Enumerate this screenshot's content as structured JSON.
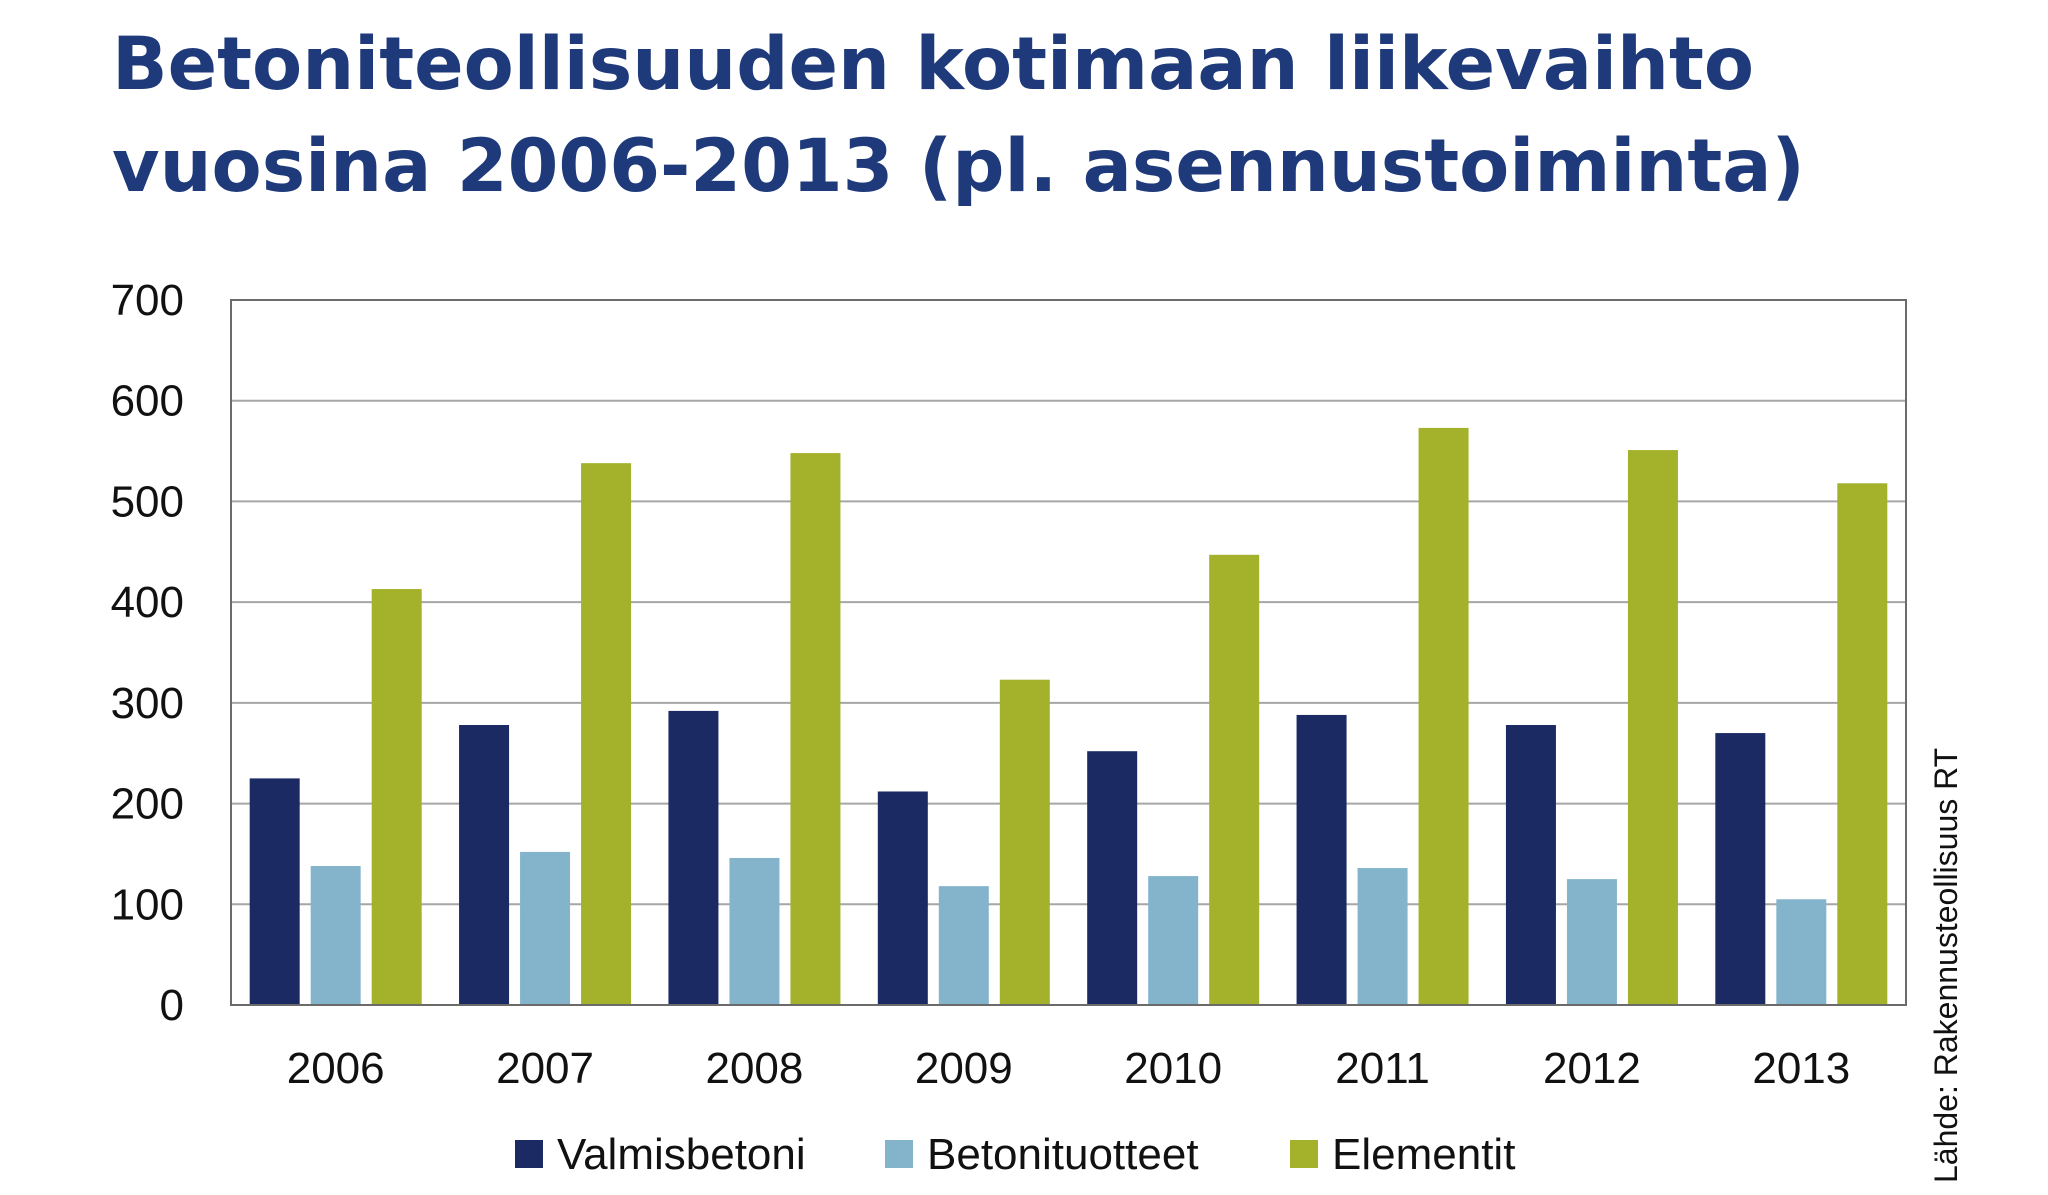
{
  "title_line1": "Betoniteollisuuden kotimaan liikevaihto",
  "title_line2": "vuosina 2006-2013 (pl. asennustoiminta)",
  "source": "Lähde: Rakennusteollisuus RT",
  "colors": {
    "Valmisbetoni": "#1b2a63",
    "Betonituotteet": "#84b4cc",
    "Elementit": "#a3b22a",
    "grid": "#a6a6a6",
    "frame": "#6b6b6b"
  },
  "chart_data": {
    "type": "bar",
    "title": "Betoniteollisuuden kotimaan liikevaihto vuosina 2006-2013 (pl. asennustoiminta)",
    "categories": [
      "2006",
      "2007",
      "2008",
      "2009",
      "2010",
      "2011",
      "2012",
      "2013"
    ],
    "series": [
      {
        "name": "Valmisbetoni",
        "values": [
          225,
          278,
          292,
          212,
          252,
          288,
          278,
          270
        ]
      },
      {
        "name": "Betonituotteet",
        "values": [
          138,
          152,
          146,
          118,
          128,
          136,
          125,
          105
        ]
      },
      {
        "name": "Elementit",
        "values": [
          413,
          538,
          548,
          323,
          447,
          573,
          551,
          518
        ]
      }
    ],
    "yticks": [
      "0",
      "100",
      "200",
      "300",
      "400",
      "500",
      "600",
      "700"
    ],
    "ylim": [
      0,
      700
    ],
    "grid": true,
    "legend_position": "bottom"
  }
}
